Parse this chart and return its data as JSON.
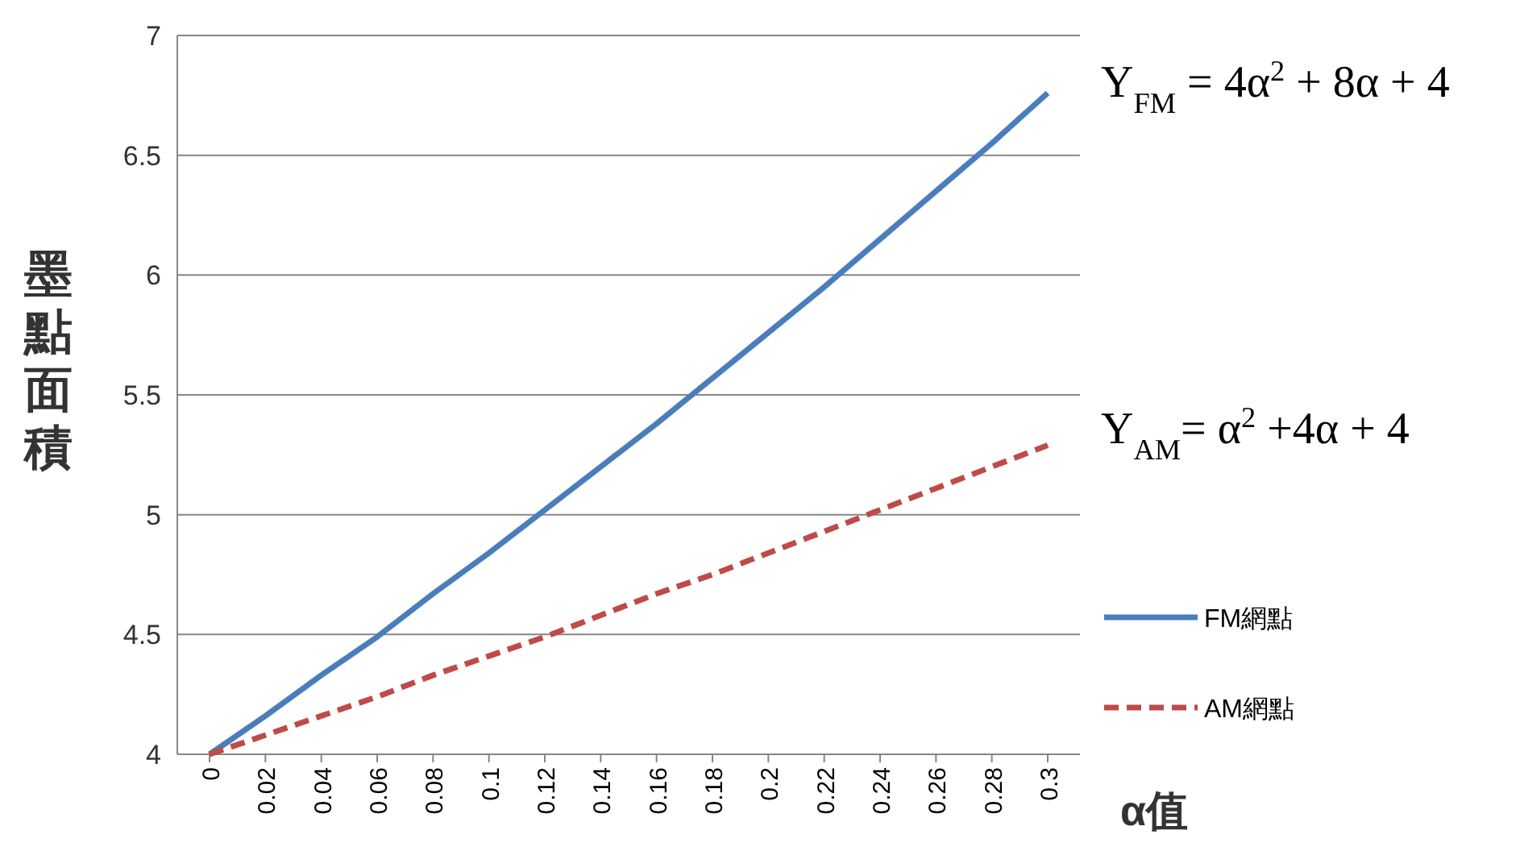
{
  "chart_data": {
    "type": "line",
    "categories": [
      "0",
      "0.02",
      "0.04",
      "0.06",
      "0.08",
      "0.1",
      "0.12",
      "0.14",
      "0.16",
      "0.18",
      "0.2",
      "0.22",
      "0.24",
      "0.26",
      "0.28",
      "0.3"
    ],
    "series": [
      {
        "name": "FM網點",
        "color": "#4a7ebb",
        "line_style": "solid",
        "values": [
          4,
          4.16,
          4.33,
          4.49,
          4.67,
          4.84,
          5.02,
          5.2,
          5.38,
          5.57,
          5.76,
          5.95,
          6.15,
          6.35,
          6.55,
          6.76
        ]
      },
      {
        "name": "AM網點",
        "color": "#be4b48",
        "line_style": "dashed",
        "values": [
          4,
          4.08,
          4.16,
          4.24,
          4.33,
          4.41,
          4.49,
          4.58,
          4.67,
          4.75,
          4.84,
          4.93,
          5.02,
          5.11,
          5.2,
          5.29
        ]
      }
    ],
    "xlabel": "α值",
    "ylabel": "墨點面積",
    "ylim": [
      4,
      7
    ],
    "yticks": [
      4,
      4.5,
      5,
      5.5,
      6,
      6.5,
      7
    ],
    "grid": "y",
    "legend": "right",
    "marker": "none",
    "annotations": [
      "Y$_{FM}$ = 4α$^{2}$ + 8α + 4",
      "Y$_{AM}$= α$^{2}$ +4α + 4"
    ]
  }
}
